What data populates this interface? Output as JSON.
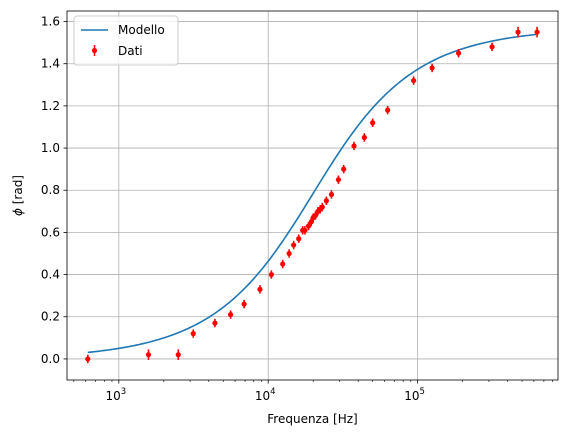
{
  "chart_data": {
    "type": "scatter",
    "title": "",
    "xlabel": "Frequenza [Hz]",
    "ylabel_math": "ϕ",
    "ylabel_unit": " [rad]",
    "xscale": "log",
    "xlim": [
      450,
      870000
    ],
    "ylim": [
      -0.1,
      1.65
    ],
    "grid": true,
    "legend": {
      "location": "upper left",
      "entries": [
        "Modello",
        "Dati"
      ]
    },
    "x_ticks": [
      {
        "value": 1000,
        "base": "10",
        "exp": "3"
      },
      {
        "value": 10000,
        "base": "10",
        "exp": "4"
      },
      {
        "value": 100000,
        "base": "10",
        "exp": "5"
      }
    ],
    "y_ticks": [
      "0.0",
      "0.2",
      "0.4",
      "0.6",
      "0.8",
      "1.0",
      "1.2",
      "1.4",
      "1.6"
    ],
    "series": [
      {
        "name": "Modello",
        "kind": "line",
        "color": "#1f77b4",
        "model": {
          "form": "arctan(f/fc)",
          "fc": 20000,
          "fmin": 620,
          "fmax": 620000
        }
      },
      {
        "name": "Dati",
        "kind": "errorbar",
        "color": "#ff0000",
        "points": [
          {
            "x": 620,
            "y": 0.0,
            "err": 0.02
          },
          {
            "x": 1580,
            "y": 0.02,
            "err": 0.025
          },
          {
            "x": 2500,
            "y": 0.02,
            "err": 0.025
          },
          {
            "x": 3150,
            "y": 0.12,
            "err": 0.02
          },
          {
            "x": 4400,
            "y": 0.17,
            "err": 0.02
          },
          {
            "x": 5600,
            "y": 0.21,
            "err": 0.02
          },
          {
            "x": 6900,
            "y": 0.26,
            "err": 0.02
          },
          {
            "x": 8800,
            "y": 0.33,
            "err": 0.02
          },
          {
            "x": 10500,
            "y": 0.4,
            "err": 0.02
          },
          {
            "x": 12500,
            "y": 0.45,
            "err": 0.02
          },
          {
            "x": 13800,
            "y": 0.5,
            "err": 0.02
          },
          {
            "x": 14800,
            "y": 0.54,
            "err": 0.02
          },
          {
            "x": 16000,
            "y": 0.57,
            "err": 0.02
          },
          {
            "x": 17000,
            "y": 0.61,
            "err": 0.02
          },
          {
            "x": 17600,
            "y": 0.61,
            "err": 0.02
          },
          {
            "x": 18600,
            "y": 0.63,
            "err": 0.02
          },
          {
            "x": 19400,
            "y": 0.65,
            "err": 0.02
          },
          {
            "x": 20000,
            "y": 0.67,
            "err": 0.02
          },
          {
            "x": 20700,
            "y": 0.68,
            "err": 0.02
          },
          {
            "x": 21500,
            "y": 0.7,
            "err": 0.02
          },
          {
            "x": 22300,
            "y": 0.71,
            "err": 0.02
          },
          {
            "x": 23000,
            "y": 0.72,
            "err": 0.02
          },
          {
            "x": 24500,
            "y": 0.75,
            "err": 0.02
          },
          {
            "x": 26500,
            "y": 0.78,
            "err": 0.02
          },
          {
            "x": 29500,
            "y": 0.85,
            "err": 0.02
          },
          {
            "x": 32000,
            "y": 0.9,
            "err": 0.02
          },
          {
            "x": 37500,
            "y": 1.01,
            "err": 0.02
          },
          {
            "x": 44000,
            "y": 1.05,
            "err": 0.02
          },
          {
            "x": 50000,
            "y": 1.12,
            "err": 0.02
          },
          {
            "x": 63000,
            "y": 1.18,
            "err": 0.02
          },
          {
            "x": 94000,
            "y": 1.32,
            "err": 0.02
          },
          {
            "x": 125000,
            "y": 1.38,
            "err": 0.02
          },
          {
            "x": 188000,
            "y": 1.45,
            "err": 0.02
          },
          {
            "x": 315000,
            "y": 1.48,
            "err": 0.02
          },
          {
            "x": 470000,
            "y": 1.55,
            "err": 0.025
          },
          {
            "x": 630000,
            "y": 1.55,
            "err": 0.025
          }
        ]
      }
    ]
  }
}
